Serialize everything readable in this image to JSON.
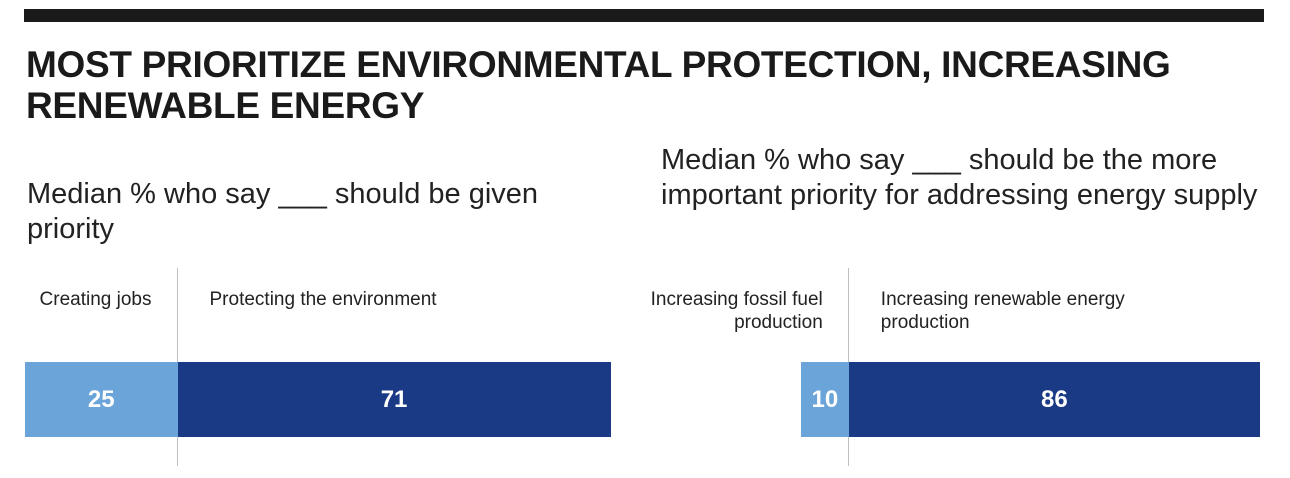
{
  "title": "MOST PRIORITIZE ENVIRONMENTAL PROTECTION, INCREASING RENEWABLE ENERGY",
  "colors": {
    "light": "#6aa4d8",
    "dark": "#1b3a85",
    "text": "#1a1a1a"
  },
  "chart_data": [
    {
      "type": "bar",
      "stacked": true,
      "orientation": "horizontal",
      "subtitle": "Median % who say ___ should be given priority",
      "categories": [
        "Creating jobs",
        "Protecting the environment"
      ],
      "values": [
        25,
        71
      ],
      "value_labels": [
        "25",
        "71"
      ]
    },
    {
      "type": "bar",
      "stacked": true,
      "orientation": "horizontal",
      "subtitle": "Median % who say ___ should be the more important priority for addressing energy supply",
      "categories": [
        "Increasing fossil fuel production",
        "Increasing renewable energy production"
      ],
      "values": [
        10,
        86
      ],
      "value_labels": [
        "10",
        "86"
      ]
    }
  ]
}
